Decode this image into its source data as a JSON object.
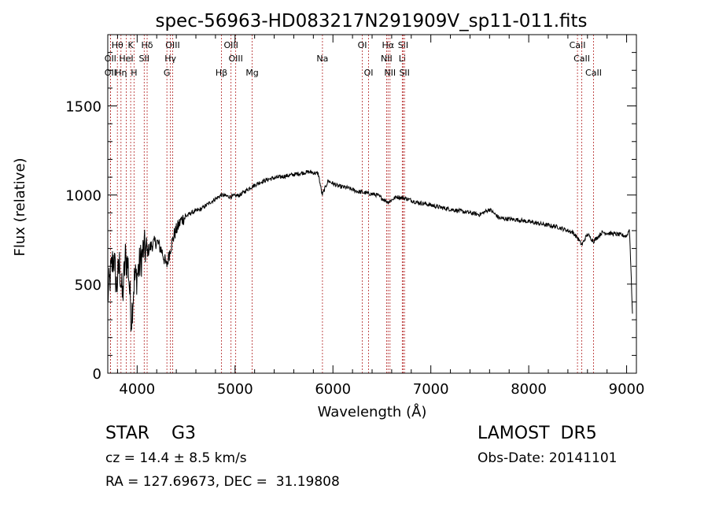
{
  "chart_data": {
    "type": "line",
    "title": "spec-56963-HD083217N291909V_sp11-011.fits",
    "xlabel": "Wavelength (Å)",
    "ylabel": "Flux (relative)",
    "xlim": [
      3700,
      9100
    ],
    "ylim": [
      0,
      1900
    ],
    "x_ticks": [
      4000,
      5000,
      6000,
      7000,
      8000,
      9000
    ],
    "y_ticks": [
      0,
      500,
      1000,
      1500
    ],
    "grid": false,
    "series": [
      {
        "name": "",
        "x": [
          3700,
          3730,
          3760,
          3790,
          3820,
          3850,
          3880,
          3910,
          3940,
          3970,
          4000,
          4040,
          4070,
          4100,
          4150,
          4200,
          4250,
          4300,
          4340,
          4380,
          4450,
          4550,
          4650,
          4750,
          4860,
          4950,
          5050,
          5150,
          5250,
          5350,
          5450,
          5550,
          5650,
          5750,
          5850,
          5890,
          5950,
          6050,
          6150,
          6250,
          6350,
          6450,
          6563,
          6650,
          6750,
          6850,
          6950,
          7100,
          7300,
          7500,
          7600,
          7700,
          7900,
          8100,
          8300,
          8450,
          8498,
          8542,
          8600,
          8662,
          8750,
          8900,
          9000,
          9030,
          9060
        ],
        "y": [
          430,
          560,
          660,
          480,
          610,
          420,
          650,
          600,
          300,
          520,
          550,
          640,
          700,
          680,
          720,
          740,
          690,
          600,
          700,
          780,
          860,
          900,
          920,
          960,
          1000,
          990,
          1000,
          1040,
          1070,
          1090,
          1100,
          1110,
          1120,
          1130,
          1120,
          1000,
          1080,
          1050,
          1040,
          1020,
          1010,
          1000,
          960,
          990,
          980,
          960,
          950,
          930,
          910,
          890,
          920,
          870,
          860,
          840,
          820,
          790,
          760,
          720,
          780,
          740,
          790,
          780,
          770,
          810,
          330
        ]
      }
    ],
    "line_markers": [
      {
        "label": "Hθ",
        "x": 3798,
        "row": 1
      },
      {
        "label": "K",
        "x": 3934,
        "row": 1
      },
      {
        "label": "Hδ",
        "x": 4102,
        "row": 1
      },
      {
        "label": "OIII",
        "x": 4363,
        "row": 1
      },
      {
        "label": "OIII",
        "x": 4959,
        "row": 1
      },
      {
        "label": "OI",
        "x": 6300,
        "row": 1
      },
      {
        "label": "Hα",
        "x": 6563,
        "row": 1
      },
      {
        "label": "SII",
        "x": 6717,
        "row": 1
      },
      {
        "label": "CaII",
        "x": 8498,
        "row": 1
      },
      {
        "label": "OII",
        "x": 3727,
        "row": 2
      },
      {
        "label": "HeI",
        "x": 3889,
        "row": 2
      },
      {
        "label": "SII",
        "x": 4072,
        "row": 2
      },
      {
        "label": "Hγ",
        "x": 4340,
        "row": 2
      },
      {
        "label": "OIII",
        "x": 5007,
        "row": 2
      },
      {
        "label": "Na",
        "x": 5893,
        "row": 2
      },
      {
        "label": "NII",
        "x": 6548,
        "row": 2
      },
      {
        "label": "Li",
        "x": 6708,
        "row": 2
      },
      {
        "label": "CaII",
        "x": 8542,
        "row": 2
      },
      {
        "label": "OII",
        "x": 3727,
        "row": 3
      },
      {
        "label": "Hη",
        "x": 3835,
        "row": 3
      },
      {
        "label": "H",
        "x": 3968,
        "row": 3
      },
      {
        "label": "G",
        "x": 4304,
        "row": 3
      },
      {
        "label": "Hβ",
        "x": 4861,
        "row": 3
      },
      {
        "label": "Mg",
        "x": 5175,
        "row": 3
      },
      {
        "label": "OI",
        "x": 6364,
        "row": 3
      },
      {
        "label": "NII",
        "x": 6583,
        "row": 3
      },
      {
        "label": "SII",
        "x": 6731,
        "row": 3
      },
      {
        "label": "CaII",
        "x": 8662,
        "row": 3
      }
    ]
  },
  "info": {
    "class_text": "STAR    G3",
    "survey_text": "LAMOST  DR5",
    "cz_text": "cz = 14.4 ± 8.5 km/s",
    "obs_text": "Obs-Date: 20141101",
    "radec_text": "RA = 127.69673, DEC =  31.19808"
  }
}
